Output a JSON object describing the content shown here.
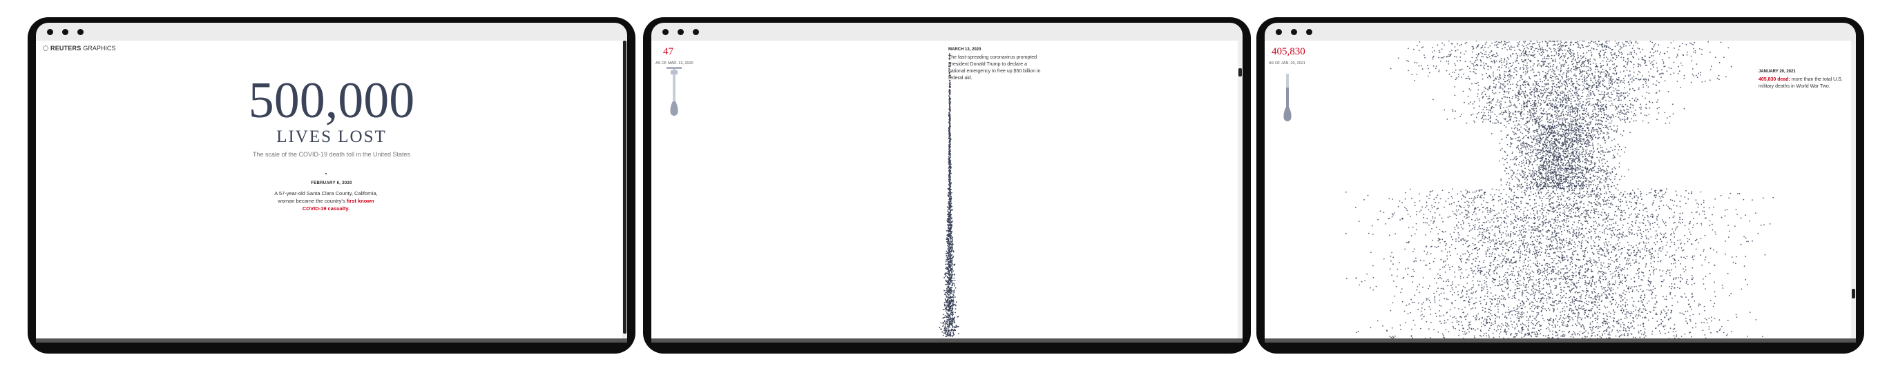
{
  "panel_1": {
    "logo": {
      "brand": "REUTERS",
      "section": "GRAPHICS"
    },
    "headline_number": "500,000",
    "headline_sub": "LIVES LOST",
    "tagline": "The scale of the COVID-19 death toll in the United States",
    "event": {
      "date": "FEBRUARY 6, 2020",
      "text": "A 57-year-old Santa Clara County, California, woman became the country's ",
      "highlight": "first known COVID-19 casualty."
    }
  },
  "panel_2": {
    "count": "47",
    "as_of": "AS OF MAR. 13, 2020",
    "event": {
      "date": "MARCH 13, 2020",
      "text": "The fast-spreading coronavirus prompted President Donald Trump to declare a national emergency to free up $50 billion in federal aid."
    }
  },
  "panel_3": {
    "count": "405,830",
    "as_of": "AS OF JAN. 20, 2021",
    "event": {
      "date": "JANUARY 20, 2021",
      "highlight": "405,830 dead:",
      "text": " more than the total U.S. military deaths in World War Two."
    }
  },
  "colors": {
    "accent": "#d0021b",
    "dots": "#3b4358",
    "frame": "#0d0d0d"
  }
}
